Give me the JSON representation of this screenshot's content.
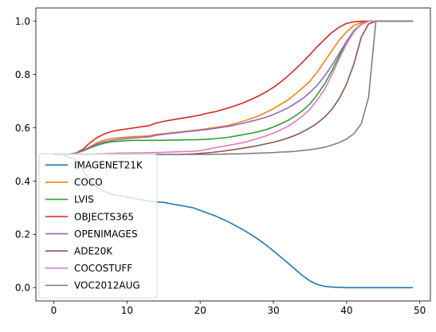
{
  "chart_data": {
    "type": "line",
    "title": "",
    "xlabel": "",
    "ylabel": "",
    "xlim": [
      -2.45,
      51.45
    ],
    "ylim": [
      -0.05,
      1.05
    ],
    "x_ticks": [
      0,
      10,
      20,
      30,
      40,
      50
    ],
    "y_ticks": [
      0.0,
      0.2,
      0.4,
      0.6,
      0.8,
      1.0
    ],
    "x_tick_labels": [
      "0",
      "10",
      "20",
      "30",
      "40",
      "50"
    ],
    "y_tick_labels": [
      "0.0",
      "0.2",
      "0.4",
      "0.6",
      "0.8",
      "1.0"
    ],
    "grid": false,
    "legend_position": "lower-left",
    "x": [
      0,
      1,
      2,
      3,
      4,
      5,
      6,
      7,
      8,
      9,
      10,
      11,
      12,
      13,
      14,
      15,
      16,
      17,
      18,
      19,
      20,
      21,
      22,
      23,
      24,
      25,
      26,
      27,
      28,
      29,
      30,
      31,
      32,
      33,
      34,
      35,
      36,
      37,
      38,
      39,
      40,
      41,
      42,
      43,
      44,
      45,
      46,
      47,
      48,
      49
    ],
    "series": [
      {
        "name": "IMAGENET21K",
        "color": "#1f77b4",
        "values": [
          0.5,
          0.5,
          0.49,
          0.48,
          0.44,
          0.4,
          0.375,
          0.36,
          0.35,
          0.345,
          0.34,
          0.335,
          0.33,
          0.325,
          0.322,
          0.32,
          0.315,
          0.31,
          0.305,
          0.3,
          0.29,
          0.28,
          0.27,
          0.258,
          0.245,
          0.23,
          0.215,
          0.198,
          0.18,
          0.16,
          0.138,
          0.115,
          0.092,
          0.068,
          0.045,
          0.025,
          0.012,
          0.005,
          0.002,
          0.001,
          0.0,
          0.0,
          0.0,
          0.0,
          0.0,
          0.0,
          0.0,
          0.0,
          0.0,
          0.0
        ]
      },
      {
        "name": "COCO",
        "color": "#ff7f0e",
        "values": [
          0.5,
          0.5,
          0.5,
          0.505,
          0.515,
          0.53,
          0.545,
          0.555,
          0.56,
          0.563,
          0.565,
          0.567,
          0.568,
          0.57,
          0.575,
          0.578,
          0.581,
          0.584,
          0.587,
          0.59,
          0.593,
          0.597,
          0.601,
          0.605,
          0.61,
          0.618,
          0.626,
          0.635,
          0.645,
          0.658,
          0.672,
          0.688,
          0.705,
          0.727,
          0.75,
          0.775,
          0.81,
          0.85,
          0.89,
          0.93,
          0.96,
          0.985,
          0.995,
          1.0,
          1.0,
          1.0,
          1.0,
          1.0,
          1.0,
          1.0
        ]
      },
      {
        "name": "LVIS",
        "color": "#2ca02c",
        "values": [
          0.5,
          0.5,
          0.5,
          0.505,
          0.513,
          0.525,
          0.535,
          0.543,
          0.548,
          0.55,
          0.552,
          0.553,
          0.553,
          0.553,
          0.553,
          0.553,
          0.554,
          0.554,
          0.555,
          0.555,
          0.556,
          0.557,
          0.559,
          0.562,
          0.565,
          0.57,
          0.575,
          0.58,
          0.586,
          0.593,
          0.603,
          0.615,
          0.628,
          0.645,
          0.665,
          0.69,
          0.725,
          0.765,
          0.815,
          0.87,
          0.925,
          0.965,
          0.99,
          1.0,
          1.0,
          1.0,
          1.0,
          1.0,
          1.0,
          1.0
        ]
      },
      {
        "name": "OBJECTS365",
        "color": "#d62728",
        "values": [
          0.5,
          0.5,
          0.5,
          0.505,
          0.52,
          0.545,
          0.565,
          0.578,
          0.587,
          0.592,
          0.596,
          0.6,
          0.604,
          0.608,
          0.618,
          0.624,
          0.629,
          0.634,
          0.638,
          0.643,
          0.648,
          0.655,
          0.66,
          0.668,
          0.676,
          0.685,
          0.695,
          0.707,
          0.72,
          0.735,
          0.752,
          0.772,
          0.795,
          0.82,
          0.847,
          0.875,
          0.905,
          0.932,
          0.958,
          0.978,
          0.992,
          0.998,
          1.0,
          1.0,
          1.0,
          1.0,
          1.0,
          1.0,
          1.0,
          1.0
        ]
      },
      {
        "name": "OPENIMAGES",
        "color": "#9467bd",
        "values": [
          0.5,
          0.5,
          0.5,
          0.505,
          0.515,
          0.528,
          0.54,
          0.548,
          0.553,
          0.557,
          0.56,
          0.562,
          0.564,
          0.566,
          0.572,
          0.576,
          0.579,
          0.582,
          0.585,
          0.588,
          0.591,
          0.594,
          0.598,
          0.602,
          0.606,
          0.612,
          0.618,
          0.625,
          0.632,
          0.64,
          0.65,
          0.662,
          0.675,
          0.692,
          0.71,
          0.733,
          0.76,
          0.795,
          0.835,
          0.88,
          0.925,
          0.962,
          0.988,
          1.0,
          1.0,
          1.0,
          1.0,
          1.0,
          1.0,
          1.0
        ]
      },
      {
        "name": "ADE20K",
        "color": "#8c564b",
        "values": [
          0.5,
          0.5,
          0.5,
          0.5,
          0.5,
          0.5,
          0.5,
          0.5,
          0.5,
          0.5,
          0.5,
          0.5,
          0.5,
          0.5,
          0.5,
          0.5,
          0.5,
          0.5,
          0.501,
          0.502,
          0.504,
          0.506,
          0.509,
          0.512,
          0.516,
          0.52,
          0.524,
          0.529,
          0.534,
          0.54,
          0.546,
          0.553,
          0.562,
          0.572,
          0.585,
          0.6,
          0.618,
          0.64,
          0.67,
          0.71,
          0.765,
          0.84,
          0.94,
          0.99,
          1.0,
          1.0,
          1.0,
          1.0,
          1.0,
          1.0
        ]
      },
      {
        "name": "COCOSTUFF",
        "color": "#e377c2",
        "values": [
          0.5,
          0.5,
          0.5,
          0.5,
          0.5,
          0.5,
          0.502,
          0.503,
          0.504,
          0.505,
          0.505,
          0.506,
          0.506,
          0.507,
          0.507,
          0.508,
          0.509,
          0.51,
          0.511,
          0.512,
          0.514,
          0.52,
          0.525,
          0.53,
          0.535,
          0.54,
          0.545,
          0.553,
          0.561,
          0.57,
          0.58,
          0.592,
          0.606,
          0.624,
          0.645,
          0.67,
          0.705,
          0.745,
          0.8,
          0.86,
          0.915,
          0.96,
          0.99,
          1.0,
          1.0,
          1.0,
          1.0,
          1.0,
          1.0,
          1.0
        ]
      },
      {
        "name": "VOC2012AUG",
        "color": "#7f7f7f",
        "values": [
          0.5,
          0.5,
          0.5,
          0.5,
          0.5,
          0.5,
          0.5,
          0.5,
          0.5,
          0.5,
          0.5,
          0.5,
          0.5,
          0.5,
          0.5,
          0.5,
          0.5,
          0.5,
          0.5,
          0.5,
          0.5,
          0.5,
          0.501,
          0.501,
          0.502,
          0.502,
          0.503,
          0.504,
          0.505,
          0.506,
          0.507,
          0.509,
          0.51,
          0.512,
          0.515,
          0.518,
          0.522,
          0.527,
          0.535,
          0.545,
          0.558,
          0.578,
          0.615,
          0.715,
          1.0,
          1.0,
          1.0,
          1.0,
          1.0,
          1.0
        ]
      }
    ]
  }
}
